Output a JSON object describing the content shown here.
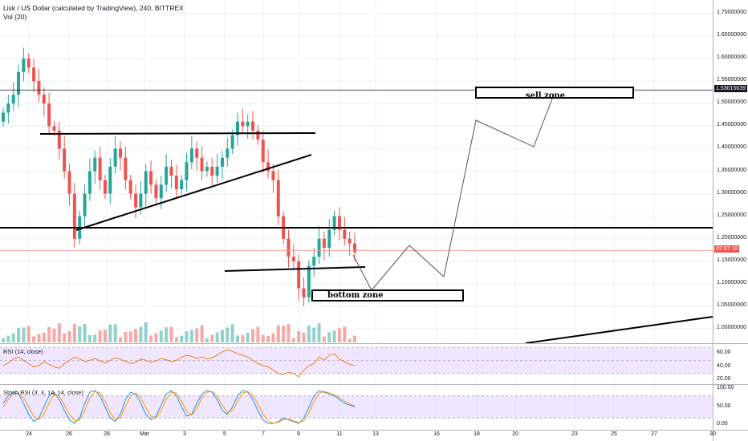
{
  "header": {
    "symbol_line": "Lisk / US Dollar (calculated by TradingView), 240, BITTREX",
    "volume_label": "Vol (20)"
  },
  "colors": {
    "up": "#26a69a",
    "down": "#ef5350",
    "grid": "#eef0f4",
    "price_line": "#f4a0a0",
    "drawing": "#000000",
    "rsi_line": "#f57f17",
    "stoch_k": "#2196f3",
    "stoch_d": "#ff9800",
    "band": "#e6d2ff"
  },
  "chart_data": {
    "type": "candlestick",
    "price_axis": {
      "ylim": [
        0.97,
        1.73
      ],
      "ticks": [
        "1.70000000",
        "1.65000000",
        "1.60000000",
        "1.55000000",
        "1.50000000",
        "1.45000000",
        "1.40000000",
        "1.35000000",
        "1.30000000",
        "1.25000000",
        "1.20000000",
        "1.15000000",
        "1.10000000",
        "1.05000000",
        "1.00000000"
      ],
      "tick_values": [
        1.7,
        1.65,
        1.6,
        1.55,
        1.5,
        1.45,
        1.4,
        1.35,
        1.3,
        1.25,
        1.2,
        1.15,
        1.1,
        1.05,
        1.0
      ]
    },
    "x_axis": {
      "labels": [
        "24",
        "26",
        "28",
        "Mar",
        "3",
        "5",
        "7",
        "9",
        "11",
        "13",
        "16",
        "18",
        "20",
        "23",
        "25",
        "27",
        "30"
      ]
    },
    "current_price": {
      "value": 1.174,
      "label": "02:07:18"
    },
    "marked_level": {
      "value": 1.53015639,
      "label": "1.53015639"
    },
    "closes": [
      1.48,
      1.5,
      1.52,
      1.57,
      1.6,
      1.58,
      1.55,
      1.52,
      1.5,
      1.45,
      1.44,
      1.4,
      1.35,
      1.3,
      1.2,
      1.25,
      1.3,
      1.35,
      1.38,
      1.33,
      1.3,
      1.36,
      1.4,
      1.38,
      1.33,
      1.3,
      1.27,
      1.3,
      1.35,
      1.32,
      1.29,
      1.32,
      1.36,
      1.34,
      1.31,
      1.33,
      1.37,
      1.4,
      1.38,
      1.35,
      1.36,
      1.34,
      1.36,
      1.38,
      1.4,
      1.43,
      1.46,
      1.45,
      1.46,
      1.44,
      1.42,
      1.37,
      1.35,
      1.33,
      1.25,
      1.2,
      1.16,
      1.15,
      1.09,
      1.07,
      1.14,
      1.16,
      1.2,
      1.18,
      1.22,
      1.25,
      1.22,
      1.2,
      1.19,
      1.17
    ],
    "rsi": {
      "label": "RSI (14, close)",
      "ticks": [
        "60.00",
        "40.00",
        "20.00"
      ],
      "tick_values": [
        60,
        40,
        20
      ],
      "ylim": [
        15,
        75
      ],
      "values": [
        42,
        46,
        52,
        55,
        50,
        45,
        40,
        42,
        48,
        44,
        40,
        38,
        45,
        50,
        55,
        52,
        48,
        50,
        53,
        49,
        46,
        50,
        54,
        52,
        48,
        45,
        47,
        52,
        50,
        47,
        49,
        53,
        51,
        48,
        50,
        55,
        58,
        56,
        53,
        55,
        52,
        54,
        58,
        63,
        66,
        64,
        60,
        58,
        55,
        50,
        45,
        42,
        40,
        36,
        30,
        28,
        32,
        30,
        25,
        35,
        42,
        45,
        55,
        50,
        58,
        60,
        52,
        48,
        44,
        42
      ]
    },
    "stoch_rsi": {
      "label": "Stoch RSI (3, 3, 14, 14, close)",
      "ticks": [
        "100.00",
        "50.00",
        "0.00"
      ],
      "tick_values": [
        100,
        50,
        0
      ],
      "ylim": [
        -10,
        110
      ],
      "k": [
        60,
        80,
        90,
        85,
        60,
        30,
        10,
        20,
        50,
        80,
        90,
        70,
        40,
        15,
        5,
        20,
        60,
        90,
        95,
        80,
        50,
        20,
        10,
        30,
        70,
        90,
        85,
        60,
        30,
        15,
        25,
        55,
        85,
        95,
        80,
        50,
        25,
        30,
        60,
        85,
        95,
        90,
        70,
        40,
        30,
        50,
        80,
        95,
        90,
        70,
        40,
        15,
        5,
        5,
        10,
        20,
        15,
        10,
        5,
        20,
        50,
        80,
        95,
        90,
        85,
        80,
        70,
        60,
        55,
        50
      ],
      "d": [
        50,
        70,
        85,
        88,
        75,
        50,
        25,
        15,
        30,
        60,
        85,
        80,
        55,
        30,
        12,
        15,
        40,
        75,
        92,
        88,
        65,
        35,
        15,
        20,
        50,
        80,
        88,
        75,
        48,
        25,
        20,
        40,
        70,
        90,
        88,
        65,
        38,
        28,
        45,
        75,
        90,
        92,
        80,
        55,
        35,
        40,
        65,
        88,
        92,
        82,
        58,
        30,
        12,
        6,
        8,
        15,
        17,
        12,
        8,
        12,
        35,
        65,
        88,
        92,
        88,
        83,
        75,
        66,
        58,
        53
      ]
    },
    "annotations": {
      "sell_zone": "sell zone",
      "bottom_zone": "bottom zone"
    }
  }
}
